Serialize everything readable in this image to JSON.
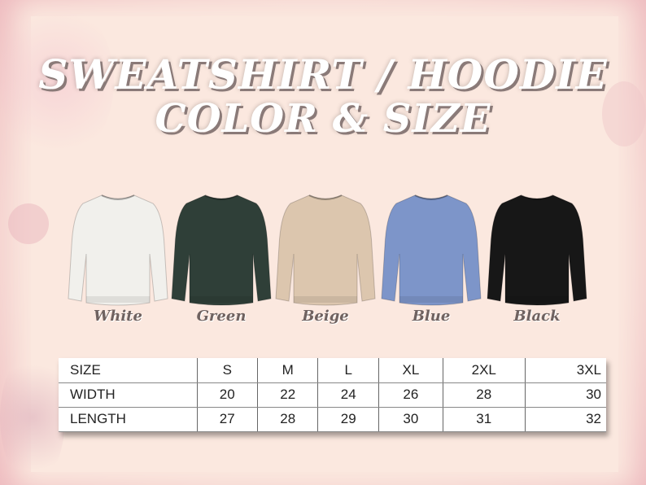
{
  "title": {
    "line1": "SWEATSHIRT / HOODIE",
    "line2": "COLOR & SIZE"
  },
  "colors": [
    {
      "label": "White",
      "hex": "#f1f0ec"
    },
    {
      "label": "Green",
      "hex": "#2f3f38"
    },
    {
      "label": "Beige",
      "hex": "#dcc6ae"
    },
    {
      "label": "Blue",
      "hex": "#7d95c9"
    },
    {
      "label": "Black",
      "hex": "#171717"
    }
  ],
  "size_table": {
    "header": [
      "SIZE",
      "S",
      "M",
      "L",
      "XL",
      "2XL",
      "3XL"
    ],
    "rows": [
      [
        "WIDTH",
        "20",
        "22",
        "24",
        "26",
        "28",
        "30"
      ],
      [
        "LENGTH",
        "27",
        "28",
        "29",
        "30",
        "31",
        "32"
      ]
    ]
  }
}
